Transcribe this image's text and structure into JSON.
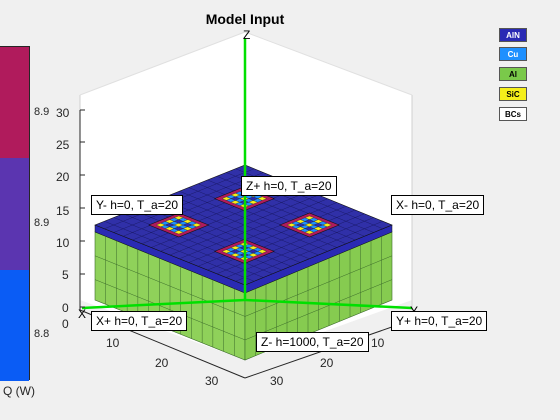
{
  "figure": {
    "title": "Model Input"
  },
  "colorbar": {
    "label": "Q (W)",
    "ticks": [
      "8.9",
      "8.9",
      "8.8"
    ],
    "segments": [
      "#b01b5c",
      "#5b35b0",
      "#0a5cf5"
    ]
  },
  "legend": {
    "items": [
      {
        "label": "AlN",
        "color": "#2a2ab4",
        "text_color": "#ffffff"
      },
      {
        "label": "Cu",
        "color": "#1e90ff",
        "text_color": "#ffffff"
      },
      {
        "label": "Al",
        "color": "#7ac94a",
        "text_color": "#000000"
      },
      {
        "label": "SiC",
        "color": "#f5ef1a",
        "text_color": "#000000"
      },
      {
        "label": "BCs",
        "color": "#ffffff",
        "text_color": "#000000"
      }
    ]
  },
  "axes": {
    "z_label": "Z",
    "y_label": "Y",
    "x_label": "X",
    "z_ticks": [
      "0",
      "5",
      "10",
      "15",
      "20",
      "25",
      "30"
    ],
    "x_ticks": [
      "0",
      "10",
      "20",
      "30"
    ],
    "y_ticks": [
      "10",
      "20",
      "30"
    ]
  },
  "bc_labels": {
    "y_minus": "Y- h=0, T_a=20",
    "x_minus": "X- h=0, T_a=20",
    "z_plus": "Z+ h=0, T_a=20",
    "x_plus": "X+ h=0, T_a=20",
    "y_plus": "Y+ h=0, T_a=20",
    "z_minus": "Z- h=1000, T_a=20"
  }
}
